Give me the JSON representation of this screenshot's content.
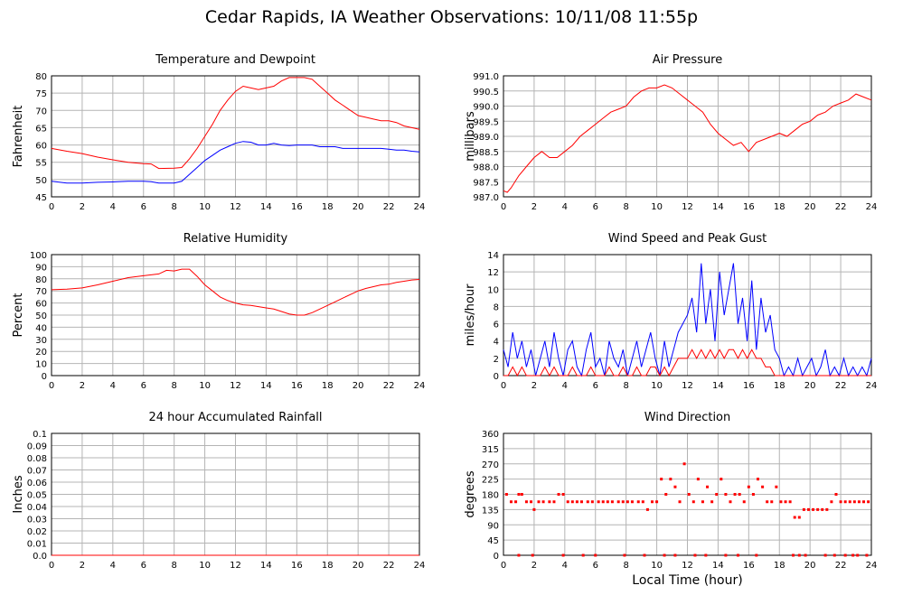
{
  "page": {
    "title": "Cedar Rapids, IA Weather Observations: 10/11/08 11:55p",
    "x_caption": "Local Time (hour)"
  },
  "colors": {
    "series_red": "#ff0000",
    "series_blue": "#0000ff",
    "grid": "#b4b4b4",
    "frame": "#000000"
  },
  "chart_data": [
    {
      "type": "line",
      "title": "Temperature and Dewpoint",
      "xlabel": "",
      "ylabel": "Fahrenheit",
      "xlim": [
        0,
        24
      ],
      "ylim": [
        45,
        80
      ],
      "grid": true,
      "xticks": [
        "0",
        "2",
        "4",
        "6",
        "8",
        "10",
        "12",
        "14",
        "16",
        "18",
        "20",
        "22",
        "24"
      ],
      "yticks": [
        "45",
        "50",
        "55",
        "60",
        "65",
        "70",
        "75",
        "80"
      ],
      "series": [
        {
          "color": "#ff0000",
          "x": [
            0,
            1,
            2,
            3,
            4,
            5,
            6,
            6.5,
            7,
            8,
            8.5,
            9,
            9.5,
            10,
            10.5,
            11,
            11.5,
            12,
            12.5,
            13,
            13.5,
            14,
            14.5,
            15,
            15.5,
            16,
            16.5,
            17,
            17.5,
            18,
            18.5,
            19,
            19.5,
            20,
            20.5,
            21,
            21.5,
            22,
            22.5,
            23,
            23.5,
            24
          ],
          "y": [
            59,
            58.2,
            57.5,
            56.5,
            55.7,
            55,
            54.6,
            54.5,
            53.2,
            53.3,
            53.5,
            56,
            59,
            62.5,
            66,
            70,
            73,
            75.5,
            77,
            76.5,
            76,
            76.5,
            77,
            78.5,
            79.5,
            79.5,
            79.5,
            79,
            77,
            75,
            73,
            71.5,
            70,
            68.5,
            68,
            67.5,
            67,
            67,
            66.5,
            65.5,
            65,
            64.5
          ]
        },
        {
          "color": "#0000ff",
          "x": [
            0,
            1,
            2,
            3,
            4,
            5,
            6,
            6.5,
            7,
            8,
            8.5,
            9,
            9.5,
            10,
            10.5,
            11,
            11.5,
            12,
            12.5,
            13,
            13.5,
            14,
            14.5,
            15,
            15.5,
            16,
            16.5,
            17,
            17.5,
            18,
            18.5,
            19,
            19.5,
            20,
            20.5,
            21,
            21.5,
            22,
            22.5,
            23,
            23.5,
            24
          ],
          "y": [
            49.5,
            49,
            49,
            49.2,
            49.3,
            49.5,
            49.5,
            49.4,
            49,
            49,
            49.5,
            51.5,
            53.5,
            55.5,
            57,
            58.5,
            59.5,
            60.5,
            61,
            60.8,
            60,
            60,
            60.5,
            60,
            59.8,
            60,
            60,
            60,
            59.5,
            59.5,
            59.5,
            59,
            59,
            59,
            59,
            59,
            59,
            58.8,
            58.5,
            58.5,
            58.2,
            58
          ]
        }
      ]
    },
    {
      "type": "line",
      "title": "Air Pressure",
      "xlabel": "",
      "ylabel": "millibars",
      "xlim": [
        0,
        24
      ],
      "ylim": [
        987.0,
        991.0
      ],
      "grid": true,
      "xticks": [
        "0",
        "2",
        "4",
        "6",
        "8",
        "10",
        "12",
        "14",
        "16",
        "18",
        "20",
        "22",
        "24"
      ],
      "yticks": [
        "987.0",
        "987.5",
        "988.0",
        "988.5",
        "989.0",
        "989.5",
        "990.0",
        "990.5",
        "991.0"
      ],
      "series": [
        {
          "color": "#ff0000",
          "x": [
            0,
            0.25,
            0.5,
            1,
            1.5,
            2,
            2.5,
            3,
            3.5,
            4,
            4.5,
            5,
            5.5,
            6,
            6.5,
            7,
            7.5,
            8,
            8.5,
            9,
            9.5,
            10,
            10.5,
            11,
            11.5,
            12,
            12.5,
            13,
            13.5,
            14,
            14.5,
            15,
            15.5,
            16,
            16.5,
            17,
            17.5,
            18,
            18.5,
            19,
            19.5,
            20,
            20.5,
            21,
            21.5,
            22,
            22.5,
            23,
            23.5,
            24
          ],
          "y": [
            987.2,
            987.15,
            987.3,
            987.7,
            988.0,
            988.3,
            988.5,
            988.3,
            988.3,
            988.5,
            988.7,
            989.0,
            989.2,
            989.4,
            989.6,
            989.8,
            989.9,
            990.0,
            990.3,
            990.5,
            990.6,
            990.6,
            990.7,
            990.6,
            990.4,
            990.2,
            990.0,
            989.8,
            989.4,
            989.1,
            988.9,
            988.7,
            988.8,
            988.5,
            988.8,
            988.9,
            989.0,
            989.1,
            989.0,
            989.2,
            989.4,
            989.5,
            989.7,
            989.8,
            990.0,
            990.1,
            990.2,
            990.4,
            990.3,
            990.2
          ]
        }
      ]
    },
    {
      "type": "line",
      "title": "Relative Humidity",
      "xlabel": "",
      "ylabel": "Percent",
      "xlim": [
        0,
        24
      ],
      "ylim": [
        0,
        100
      ],
      "grid": true,
      "xticks": [
        "0",
        "2",
        "4",
        "6",
        "8",
        "10",
        "12",
        "14",
        "16",
        "18",
        "20",
        "22",
        "24"
      ],
      "yticks": [
        "0",
        "10",
        "20",
        "30",
        "40",
        "50",
        "60",
        "70",
        "80",
        "90",
        "100"
      ],
      "series": [
        {
          "color": "#ff0000",
          "x": [
            0,
            1,
            2,
            3,
            4,
            5,
            6,
            7,
            7.5,
            8,
            8.5,
            9,
            9.5,
            10,
            10.5,
            11,
            11.5,
            12,
            12.5,
            13,
            13.5,
            14,
            14.5,
            15,
            15.5,
            16,
            16.5,
            17,
            17.5,
            18,
            18.5,
            19,
            19.5,
            20,
            20.5,
            21,
            21.5,
            22,
            22.5,
            23,
            23.5,
            24
          ],
          "y": [
            71,
            71.5,
            72.5,
            75,
            78,
            81,
            82.5,
            84,
            87,
            86.5,
            88,
            88,
            82,
            75,
            70,
            65,
            62,
            60,
            58.5,
            58,
            57,
            56,
            55,
            53,
            51,
            50,
            50,
            52,
            55,
            58,
            61,
            64,
            67,
            70,
            72,
            73.5,
            75,
            75.5,
            77,
            78,
            79,
            79.5
          ]
        }
      ]
    },
    {
      "type": "line",
      "title": "Wind Speed and Peak Gust",
      "xlabel": "",
      "ylabel": "miles/hour",
      "xlim": [
        0,
        24
      ],
      "ylim": [
        0,
        14
      ],
      "grid": true,
      "xticks": [
        "0",
        "2",
        "4",
        "6",
        "8",
        "10",
        "12",
        "14",
        "16",
        "18",
        "20",
        "22",
        "24"
      ],
      "yticks": [
        "0",
        "2",
        "4",
        "6",
        "8",
        "10",
        "12",
        "14"
      ],
      "series": [
        {
          "color": "#0000ff",
          "x": [
            0,
            0.3,
            0.6,
            0.9,
            1.2,
            1.5,
            1.8,
            2.1,
            2.4,
            2.7,
            3.0,
            3.3,
            3.6,
            3.9,
            4.2,
            4.5,
            4.8,
            5.1,
            5.4,
            5.7,
            6.0,
            6.3,
            6.6,
            6.9,
            7.2,
            7.5,
            7.8,
            8.1,
            8.4,
            8.7,
            9.0,
            9.3,
            9.6,
            9.9,
            10.2,
            10.5,
            10.8,
            11.1,
            11.4,
            11.7,
            12.0,
            12.3,
            12.6,
            12.9,
            13.2,
            13.5,
            13.8,
            14.1,
            14.4,
            14.7,
            15.0,
            15.3,
            15.6,
            15.9,
            16.2,
            16.5,
            16.8,
            17.1,
            17.4,
            17.7,
            18.0,
            18.3,
            18.6,
            18.9,
            19.2,
            19.5,
            19.8,
            20.1,
            20.4,
            20.7,
            21.0,
            21.3,
            21.6,
            21.9,
            22.2,
            22.5,
            22.8,
            23.1,
            23.4,
            23.7,
            24.0
          ],
          "y": [
            3,
            1,
            5,
            2,
            4,
            1,
            3,
            0,
            2,
            4,
            1,
            5,
            2,
            0,
            3,
            4,
            1,
            0,
            3,
            5,
            1,
            2,
            0,
            4,
            2,
            1,
            3,
            0,
            2,
            4,
            1,
            3,
            5,
            2,
            0,
            4,
            1,
            3,
            5,
            6,
            7,
            9,
            5,
            13,
            6,
            10,
            4,
            12,
            7,
            10,
            13,
            6,
            9,
            4,
            11,
            3,
            9,
            5,
            7,
            3,
            2,
            0,
            1,
            0,
            2,
            0,
            1,
            2,
            0,
            1,
            3,
            0,
            1,
            0,
            2,
            0,
            1,
            0,
            1,
            0,
            2
          ]
        },
        {
          "color": "#ff0000",
          "x": [
            0,
            0.3,
            0.6,
            0.9,
            1.2,
            1.5,
            1.8,
            2.1,
            2.4,
            2.7,
            3.0,
            3.3,
            3.6,
            3.9,
            4.2,
            4.5,
            4.8,
            5.1,
            5.4,
            5.7,
            6.0,
            6.3,
            6.6,
            6.9,
            7.2,
            7.5,
            7.8,
            8.1,
            8.4,
            8.7,
            9.0,
            9.3,
            9.6,
            9.9,
            10.2,
            10.5,
            10.8,
            11.1,
            11.4,
            11.7,
            12.0,
            12.3,
            12.6,
            12.9,
            13.2,
            13.5,
            13.8,
            14.1,
            14.4,
            14.7,
            15.0,
            15.3,
            15.6,
            15.9,
            16.2,
            16.5,
            16.8,
            17.1,
            17.4,
            17.7,
            18.0,
            18.3,
            18.6,
            18.9,
            19.2,
            19.5,
            19.8,
            20.1,
            20.4,
            20.7,
            21.0,
            21.3,
            21.6,
            21.9,
            22.2,
            22.5,
            22.8,
            23.1,
            23.4,
            23.7,
            24.0
          ],
          "y": [
            0,
            0,
            1,
            0,
            1,
            0,
            0,
            0,
            0,
            1,
            0,
            1,
            0,
            0,
            0,
            1,
            0,
            0,
            0,
            1,
            0,
            0,
            0,
            1,
            0,
            0,
            1,
            0,
            0,
            1,
            0,
            0,
            1,
            1,
            0,
            1,
            0,
            1,
            2,
            2,
            2,
            3,
            2,
            3,
            2,
            3,
            2,
            3,
            2,
            3,
            3,
            2,
            3,
            2,
            3,
            2,
            2,
            1,
            1,
            0,
            0,
            0,
            0,
            0,
            0,
            0,
            0,
            0,
            0,
            0,
            0,
            0,
            0,
            0,
            0,
            0,
            0,
            0,
            0,
            0,
            0
          ]
        }
      ]
    },
    {
      "type": "line",
      "title": "24 hour Accumulated Rainfall",
      "xlabel": "",
      "ylabel": "Inches",
      "xlim": [
        0,
        24
      ],
      "ylim": [
        0.0,
        0.1
      ],
      "grid": true,
      "xticks": [
        "0",
        "2",
        "4",
        "6",
        "8",
        "10",
        "12",
        "14",
        "16",
        "18",
        "20",
        "22",
        "24"
      ],
      "yticks": [
        "0.0",
        "0.01",
        "0.02",
        "0.03",
        "0.04",
        "0.05",
        "0.06",
        "0.07",
        "0.08",
        "0.09",
        "0.1"
      ],
      "series": [
        {
          "color": "#ff0000",
          "x": [
            0,
            24
          ],
          "y": [
            0.0,
            0.0
          ]
        }
      ]
    },
    {
      "type": "scatter",
      "title": "Wind Direction",
      "xlabel": "Local Time (hour)",
      "ylabel": "degrees",
      "xlim": [
        0,
        24
      ],
      "ylim": [
        0,
        360
      ],
      "grid": true,
      "xticks": [
        "0",
        "2",
        "4",
        "6",
        "8",
        "10",
        "12",
        "14",
        "16",
        "18",
        "20",
        "22",
        "24"
      ],
      "yticks": [
        "0",
        "45",
        "90",
        "135",
        "180",
        "225",
        "270",
        "315",
        "360"
      ],
      "series": [
        {
          "color": "#ff0000",
          "x": [
            0.2,
            0.5,
            0.8,
            1.0,
            1.2,
            1.5,
            1.8,
            2.0,
            2.3,
            2.6,
            3.0,
            3.3,
            3.6,
            3.9,
            4.2,
            4.5,
            4.8,
            5.1,
            5.5,
            5.8,
            6.2,
            6.5,
            6.8,
            7.1,
            7.5,
            7.8,
            8.1,
            8.4,
            8.8,
            9.1,
            9.4,
            9.7,
            10.0,
            10.3,
            10.6,
            10.9,
            11.2,
            11.5,
            11.8,
            12.1,
            12.4,
            12.7,
            13.0,
            13.3,
            13.6,
            13.9,
            14.2,
            14.5,
            14.8,
            15.1,
            15.4,
            15.7,
            16.0,
            16.3,
            16.6,
            16.9,
            17.2,
            17.5,
            17.8,
            18.1,
            18.4,
            18.7,
            19.0,
            19.3,
            19.6,
            19.9,
            20.2,
            20.5,
            20.8,
            21.1,
            21.4,
            21.7,
            22.0,
            22.3,
            22.6,
            22.9,
            23.2,
            23.5,
            23.8,
            1.0,
            1.9,
            3.9,
            5.2,
            6.0,
            7.9,
            9.2,
            10.5,
            11.2,
            12.5,
            13.2,
            14.5,
            15.3,
            16.5,
            18.9,
            19.3,
            19.7,
            21.0,
            21.6,
            22.3,
            22.8,
            23.1,
            23.7
          ],
          "y": [
            180,
            158,
            158,
            180,
            180,
            158,
            158,
            135,
            158,
            158,
            158,
            158,
            180,
            180,
            158,
            158,
            158,
            158,
            158,
            158,
            158,
            158,
            158,
            158,
            158,
            158,
            158,
            158,
            158,
            158,
            135,
            158,
            158,
            225,
            180,
            225,
            202,
            158,
            270,
            180,
            158,
            225,
            158,
            202,
            158,
            180,
            225,
            180,
            158,
            180,
            180,
            158,
            202,
            180,
            225,
            202,
            158,
            158,
            202,
            158,
            158,
            158,
            112,
            112,
            135,
            135,
            135,
            135,
            135,
            135,
            158,
            180,
            158,
            158,
            158,
            158,
            158,
            158,
            158,
            0,
            0,
            0,
            0,
            0,
            0,
            0,
            0,
            0,
            0,
            0,
            0,
            0,
            0,
            0,
            0,
            0,
            0,
            0,
            0,
            0,
            0,
            0
          ]
        }
      ]
    }
  ]
}
